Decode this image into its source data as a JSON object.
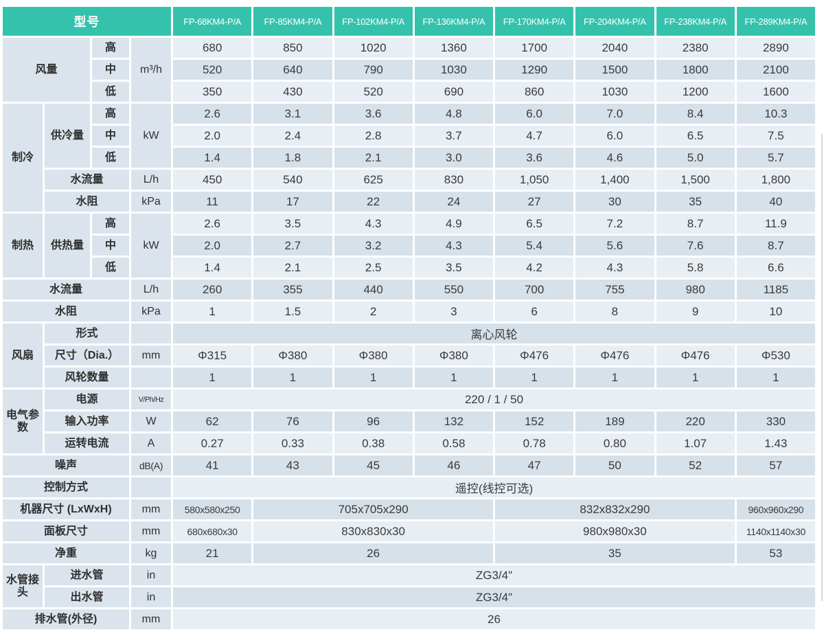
{
  "title_corner": "型号",
  "models": [
    "FP-68KM4-P/A",
    "FP-85KM4-P/A",
    "FP-102KM4-P/A",
    "FP-136KM4-P/A",
    "FP-170KM4-P/A",
    "FP-204KM4-P/A",
    "FP-238KM4-P/A",
    "FP-289KM4-P/A"
  ],
  "colors": {
    "header_teal": "#35c2ac",
    "row_light": "#e7eef4",
    "row_dark": "#d6e1ea",
    "label_bg": "#dbe4ec",
    "header_text": "#ffffff",
    "body_text": "#3a3a3a"
  },
  "rows": [
    {
      "cells": [
        {
          "t": "风量",
          "k": "lab",
          "rs": 3,
          "cs": 2
        },
        {
          "t": "高",
          "k": "lab"
        },
        {
          "t": "m³/h",
          "k": "unit",
          "rs": 3
        },
        {
          "t": "680",
          "k": "val"
        },
        {
          "t": "850",
          "k": "val"
        },
        {
          "t": "1020",
          "k": "val"
        },
        {
          "t": "1360",
          "k": "val"
        },
        {
          "t": "1700",
          "k": "val"
        },
        {
          "t": "2040",
          "k": "val"
        },
        {
          "t": "2380",
          "k": "val"
        },
        {
          "t": "2890",
          "k": "val"
        }
      ]
    },
    {
      "cells": [
        {
          "t": "中",
          "k": "lab"
        },
        {
          "t": "520",
          "k": "val"
        },
        {
          "t": "640",
          "k": "val"
        },
        {
          "t": "790",
          "k": "val"
        },
        {
          "t": "1030",
          "k": "val"
        },
        {
          "t": "1290",
          "k": "val"
        },
        {
          "t": "1500",
          "k": "val"
        },
        {
          "t": "1800",
          "k": "val"
        },
        {
          "t": "2100",
          "k": "val"
        }
      ]
    },
    {
      "cells": [
        {
          "t": "低",
          "k": "lab"
        },
        {
          "t": "350",
          "k": "val"
        },
        {
          "t": "430",
          "k": "val"
        },
        {
          "t": "520",
          "k": "val"
        },
        {
          "t": "690",
          "k": "val"
        },
        {
          "t": "860",
          "k": "val"
        },
        {
          "t": "1030",
          "k": "val"
        },
        {
          "t": "1200",
          "k": "val"
        },
        {
          "t": "1600",
          "k": "val"
        }
      ]
    },
    {
      "cells": [
        {
          "t": "制冷",
          "k": "lab",
          "rs": 5
        },
        {
          "t": "供冷量",
          "k": "lab",
          "rs": 3
        },
        {
          "t": "高",
          "k": "lab"
        },
        {
          "t": "kW",
          "k": "unit",
          "rs": 3
        },
        {
          "t": "2.6",
          "k": "val"
        },
        {
          "t": "3.1",
          "k": "val"
        },
        {
          "t": "3.6",
          "k": "val"
        },
        {
          "t": "4.8",
          "k": "val"
        },
        {
          "t": "6.0",
          "k": "val"
        },
        {
          "t": "7.0",
          "k": "val"
        },
        {
          "t": "8.4",
          "k": "val"
        },
        {
          "t": "10.3",
          "k": "val"
        }
      ]
    },
    {
      "cells": [
        {
          "t": "中",
          "k": "lab"
        },
        {
          "t": "2.0",
          "k": "val"
        },
        {
          "t": "2.4",
          "k": "val"
        },
        {
          "t": "2.8",
          "k": "val"
        },
        {
          "t": "3.7",
          "k": "val"
        },
        {
          "t": "4.7",
          "k": "val"
        },
        {
          "t": "6.0",
          "k": "val"
        },
        {
          "t": "6.5",
          "k": "val"
        },
        {
          "t": "7.5",
          "k": "val"
        }
      ]
    },
    {
      "cells": [
        {
          "t": "低",
          "k": "lab"
        },
        {
          "t": "1.4",
          "k": "val"
        },
        {
          "t": "1.8",
          "k": "val"
        },
        {
          "t": "2.1",
          "k": "val"
        },
        {
          "t": "3.0",
          "k": "val"
        },
        {
          "t": "3.6",
          "k": "val"
        },
        {
          "t": "4.6",
          "k": "val"
        },
        {
          "t": "5.0",
          "k": "val"
        },
        {
          "t": "5.7",
          "k": "val"
        }
      ]
    },
    {
      "cells": [
        {
          "t": "水流量",
          "k": "lab",
          "cs": 2
        },
        {
          "t": "L/h",
          "k": "unit"
        },
        {
          "t": "450",
          "k": "val"
        },
        {
          "t": "540",
          "k": "val"
        },
        {
          "t": "625",
          "k": "val"
        },
        {
          "t": "830",
          "k": "val"
        },
        {
          "t": "1,050",
          "k": "val"
        },
        {
          "t": "1,400",
          "k": "val"
        },
        {
          "t": "1,500",
          "k": "val"
        },
        {
          "t": "1,800",
          "k": "val"
        }
      ]
    },
    {
      "cells": [
        {
          "t": "水阻",
          "k": "lab",
          "cs": 2
        },
        {
          "t": "kPa",
          "k": "unit"
        },
        {
          "t": "11",
          "k": "val"
        },
        {
          "t": "17",
          "k": "val"
        },
        {
          "t": "22",
          "k": "val"
        },
        {
          "t": "24",
          "k": "val"
        },
        {
          "t": "27",
          "k": "val"
        },
        {
          "t": "30",
          "k": "val"
        },
        {
          "t": "35",
          "k": "val"
        },
        {
          "t": "40",
          "k": "val"
        }
      ]
    },
    {
      "cells": [
        {
          "t": "制热",
          "k": "lab",
          "rs": 3
        },
        {
          "t": "供热量",
          "k": "lab",
          "rs": 3
        },
        {
          "t": "高",
          "k": "lab"
        },
        {
          "t": "kW",
          "k": "unit",
          "rs": 3
        },
        {
          "t": "2.6",
          "k": "val"
        },
        {
          "t": "3.5",
          "k": "val"
        },
        {
          "t": "4.3",
          "k": "val"
        },
        {
          "t": "4.9",
          "k": "val"
        },
        {
          "t": "6.5",
          "k": "val"
        },
        {
          "t": "7.2",
          "k": "val"
        },
        {
          "t": "8.7",
          "k": "val"
        },
        {
          "t": "11.9",
          "k": "val"
        }
      ]
    },
    {
      "cells": [
        {
          "t": "中",
          "k": "lab"
        },
        {
          "t": "2.0",
          "k": "val"
        },
        {
          "t": "2.7",
          "k": "val"
        },
        {
          "t": "3.2",
          "k": "val"
        },
        {
          "t": "4.3",
          "k": "val"
        },
        {
          "t": "5.4",
          "k": "val"
        },
        {
          "t": "5.6",
          "k": "val"
        },
        {
          "t": "7.6",
          "k": "val"
        },
        {
          "t": "8.7",
          "k": "val"
        }
      ]
    },
    {
      "cells": [
        {
          "t": "低",
          "k": "lab"
        },
        {
          "t": "1.4",
          "k": "val"
        },
        {
          "t": "2.1",
          "k": "val"
        },
        {
          "t": "2.5",
          "k": "val"
        },
        {
          "t": "3.5",
          "k": "val"
        },
        {
          "t": "4.2",
          "k": "val"
        },
        {
          "t": "4.3",
          "k": "val"
        },
        {
          "t": "5.8",
          "k": "val"
        },
        {
          "t": "6.6",
          "k": "val"
        }
      ]
    },
    {
      "cells": [
        {
          "t": "水流量",
          "k": "lab",
          "cs": 3
        },
        {
          "t": "L/h",
          "k": "unit"
        },
        {
          "t": "260",
          "k": "val"
        },
        {
          "t": "355",
          "k": "val"
        },
        {
          "t": "440",
          "k": "val"
        },
        {
          "t": "550",
          "k": "val"
        },
        {
          "t": "700",
          "k": "val"
        },
        {
          "t": "755",
          "k": "val"
        },
        {
          "t": "980",
          "k": "val"
        },
        {
          "t": "1185",
          "k": "val"
        }
      ]
    },
    {
      "cells": [
        {
          "t": "水阻",
          "k": "lab",
          "cs": 3
        },
        {
          "t": "kPa",
          "k": "unit"
        },
        {
          "t": "1",
          "k": "val"
        },
        {
          "t": "1.5",
          "k": "val"
        },
        {
          "t": "2",
          "k": "val"
        },
        {
          "t": "3",
          "k": "val"
        },
        {
          "t": "6",
          "k": "val"
        },
        {
          "t": "8",
          "k": "val"
        },
        {
          "t": "9",
          "k": "val"
        },
        {
          "t": "10",
          "k": "val"
        }
      ]
    },
    {
      "cells": [
        {
          "t": "风扇",
          "k": "lab",
          "rs": 3
        },
        {
          "t": "形式",
          "k": "lab",
          "cs": 2
        },
        {
          "t": "",
          "k": "unit"
        },
        {
          "t": "离心风轮",
          "k": "val",
          "cs": 8
        }
      ]
    },
    {
      "cells": [
        {
          "t": "尺寸（Dia.）",
          "k": "lab",
          "cs": 2
        },
        {
          "t": "mm",
          "k": "unit"
        },
        {
          "t": "Φ315",
          "k": "val"
        },
        {
          "t": "Φ380",
          "k": "val"
        },
        {
          "t": "Φ380",
          "k": "val"
        },
        {
          "t": "Φ380",
          "k": "val"
        },
        {
          "t": "Φ476",
          "k": "val"
        },
        {
          "t": "Φ476",
          "k": "val"
        },
        {
          "t": "Φ476",
          "k": "val"
        },
        {
          "t": "Φ530",
          "k": "val"
        }
      ]
    },
    {
      "cells": [
        {
          "t": "风轮数量",
          "k": "lab",
          "cs": 2
        },
        {
          "t": "",
          "k": "unit"
        },
        {
          "t": "1",
          "k": "val"
        },
        {
          "t": "1",
          "k": "val"
        },
        {
          "t": "1",
          "k": "val"
        },
        {
          "t": "1",
          "k": "val"
        },
        {
          "t": "1",
          "k": "val"
        },
        {
          "t": "1",
          "k": "val"
        },
        {
          "t": "1",
          "k": "val"
        },
        {
          "t": "1",
          "k": "val"
        }
      ]
    },
    {
      "cells": [
        {
          "t": "电气参数",
          "k": "lab",
          "rs": 3
        },
        {
          "t": "电源",
          "k": "lab",
          "cs": 2
        },
        {
          "t": "V/Ph/Hz",
          "k": "unit",
          "xs": true
        },
        {
          "t": "220 / 1 / 50",
          "k": "val",
          "cs": 8
        }
      ]
    },
    {
      "cells": [
        {
          "t": "输入功率",
          "k": "lab",
          "cs": 2
        },
        {
          "t": "W",
          "k": "unit"
        },
        {
          "t": "62",
          "k": "val"
        },
        {
          "t": "76",
          "k": "val"
        },
        {
          "t": "96",
          "k": "val"
        },
        {
          "t": "132",
          "k": "val"
        },
        {
          "t": "152",
          "k": "val"
        },
        {
          "t": "189",
          "k": "val"
        },
        {
          "t": "220",
          "k": "val"
        },
        {
          "t": "330",
          "k": "val"
        }
      ]
    },
    {
      "cells": [
        {
          "t": "运转电流",
          "k": "lab",
          "cs": 2
        },
        {
          "t": "A",
          "k": "unit"
        },
        {
          "t": "0.27",
          "k": "val"
        },
        {
          "t": "0.33",
          "k": "val"
        },
        {
          "t": "0.38",
          "k": "val"
        },
        {
          "t": "0.58",
          "k": "val"
        },
        {
          "t": "0.78",
          "k": "val"
        },
        {
          "t": "0.80",
          "k": "val"
        },
        {
          "t": "1.07",
          "k": "val"
        },
        {
          "t": "1.43",
          "k": "val"
        }
      ]
    },
    {
      "cells": [
        {
          "t": "噪声",
          "k": "lab",
          "cs": 3
        },
        {
          "t": "dB(A)",
          "k": "unit",
          "sm": true
        },
        {
          "t": "41",
          "k": "val"
        },
        {
          "t": "43",
          "k": "val"
        },
        {
          "t": "45",
          "k": "val"
        },
        {
          "t": "46",
          "k": "val"
        },
        {
          "t": "47",
          "k": "val"
        },
        {
          "t": "50",
          "k": "val"
        },
        {
          "t": "52",
          "k": "val"
        },
        {
          "t": "57",
          "k": "val"
        }
      ]
    },
    {
      "cells": [
        {
          "t": "控制方式",
          "k": "lab",
          "cs": 3
        },
        {
          "t": "",
          "k": "unit"
        },
        {
          "t": "遥控(线控可选)",
          "k": "val",
          "cs": 8
        }
      ]
    },
    {
      "cells": [
        {
          "t": "机器尺寸 (LxWxH)",
          "k": "lab",
          "cs": 3
        },
        {
          "t": "mm",
          "k": "unit"
        },
        {
          "t": "580x580x250",
          "k": "val",
          "sm": true
        },
        {
          "t": "705x705x290",
          "k": "val",
          "cs": 3
        },
        {
          "t": "832x832x290",
          "k": "val",
          "cs": 3
        },
        {
          "t": "960x960x290",
          "k": "val",
          "sm": true
        }
      ]
    },
    {
      "cells": [
        {
          "t": "面板尺寸",
          "k": "lab",
          "cs": 3
        },
        {
          "t": "mm",
          "k": "unit"
        },
        {
          "t": "680x680x30",
          "k": "val",
          "sm": true
        },
        {
          "t": "830x830x30",
          "k": "val",
          "cs": 3
        },
        {
          "t": "980x980x30",
          "k": "val",
          "cs": 3
        },
        {
          "t": "1140x1140x30",
          "k": "val",
          "sm": true
        }
      ]
    },
    {
      "cells": [
        {
          "t": "净重",
          "k": "lab",
          "cs": 3
        },
        {
          "t": "kg",
          "k": "unit"
        },
        {
          "t": "21",
          "k": "val"
        },
        {
          "t": "26",
          "k": "val",
          "cs": 3
        },
        {
          "t": "35",
          "k": "val",
          "cs": 3
        },
        {
          "t": "53",
          "k": "val"
        }
      ]
    },
    {
      "cells": [
        {
          "t": "水管接头",
          "k": "lab",
          "rs": 2
        },
        {
          "t": "进水管",
          "k": "lab",
          "cs": 2
        },
        {
          "t": "in",
          "k": "unit"
        },
        {
          "t": "ZG3/4\"",
          "k": "val",
          "cs": 8
        }
      ]
    },
    {
      "cells": [
        {
          "t": "出水管",
          "k": "lab",
          "cs": 2
        },
        {
          "t": "in",
          "k": "unit"
        },
        {
          "t": "ZG3/4\"",
          "k": "val",
          "cs": 8
        }
      ]
    },
    {
      "cells": [
        {
          "t": "排水管(外径)",
          "k": "lab",
          "cs": 3
        },
        {
          "t": "mm",
          "k": "unit"
        },
        {
          "t": "26",
          "k": "val",
          "cs": 8
        }
      ]
    }
  ]
}
